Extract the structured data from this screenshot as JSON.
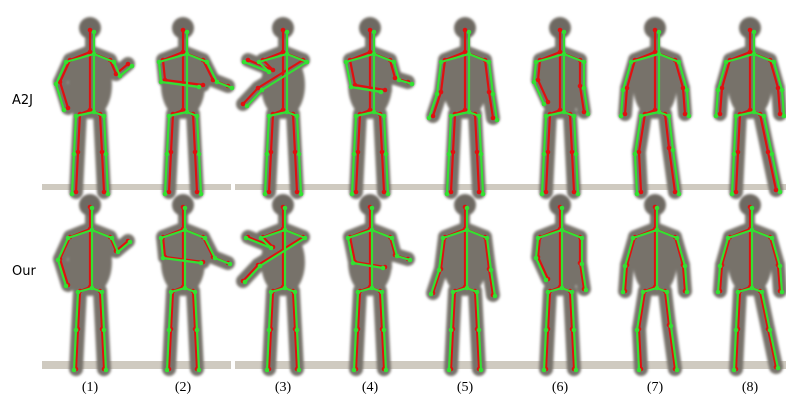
{
  "rows": [
    {
      "label": "A2J"
    },
    {
      "label": "Our"
    }
  ],
  "columns": [
    "(1)",
    "(2)",
    "(3)",
    "(4)",
    "(5)",
    "(6)",
    "(7)",
    "(8)"
  ]
}
